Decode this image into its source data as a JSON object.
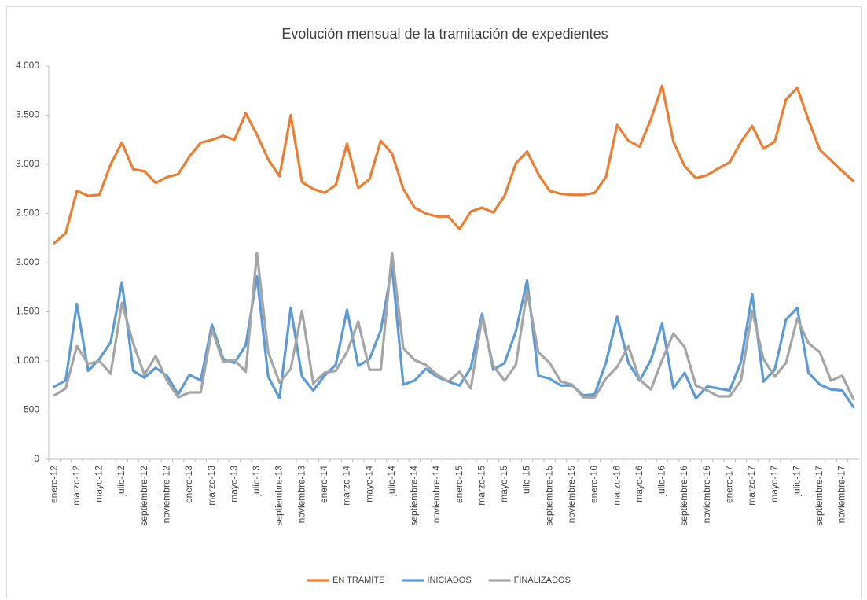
{
  "chart_data": {
    "type": "line",
    "title": "Evolución mensual de la tramitación de expedientes",
    "categories": [
      "enero-12",
      null,
      "marzo-12",
      null,
      "mayo-12",
      null,
      "julio-12",
      null,
      "septiembre-12",
      null,
      "noviembre-12",
      null,
      "enero-13",
      null,
      "marzo-13",
      null,
      "mayo-13",
      null,
      "julio-13",
      null,
      "septiembre-13",
      null,
      "noviembre-13",
      null,
      "enero-14",
      null,
      "marzo-14",
      null,
      "mayo-14",
      null,
      "julio-14",
      null,
      "septiembre-14",
      null,
      "noviembre-14",
      null,
      "enero-15",
      null,
      "marzo-15",
      null,
      "mayo-15",
      null,
      "julio-15",
      null,
      "septiembre-15",
      null,
      "noviembre-15",
      null,
      "enero-16",
      null,
      "marzo-16",
      null,
      "mayo-16",
      null,
      "julio-16",
      null,
      "septiembre-16",
      null,
      "noviembre-16",
      null,
      "enero-17",
      null,
      "marzo-17",
      null,
      "mayo-17",
      null,
      "julio-17",
      null,
      "septiembre-17",
      null,
      "noviembre-17",
      null
    ],
    "series": [
      {
        "name": "EN TRAMITE",
        "color": "#ed7d31",
        "values": [
          2200,
          2300,
          2730,
          2680,
          2690,
          3000,
          3220,
          2950,
          2930,
          2810,
          2870,
          2900,
          3080,
          3220,
          3250,
          3290,
          3250,
          3520,
          3300,
          3050,
          2880,
          3500,
          2820,
          2750,
          2710,
          2790,
          3210,
          2760,
          2850,
          3240,
          3110,
          2750,
          2560,
          2500,
          2470,
          2470,
          2340,
          2520,
          2560,
          2510,
          2680,
          3010,
          3130,
          2900,
          2730,
          2700,
          2690,
          2690,
          2710,
          2870,
          3400,
          3240,
          3180,
          3460,
          3800,
          3230,
          2980,
          2860,
          2890,
          2960,
          3020,
          3230,
          3390,
          3160,
          3230,
          3660,
          3780,
          3450,
          3150,
          3040,
          2930,
          2830
        ]
      },
      {
        "name": "INICIADOS",
        "color": "#5b9bd5",
        "values": [
          740,
          800,
          1580,
          900,
          1020,
          1190,
          1800,
          900,
          830,
          930,
          850,
          660,
          860,
          800,
          1370,
          1020,
          980,
          1160,
          1860,
          840,
          620,
          1540,
          840,
          700,
          850,
          960,
          1520,
          950,
          1020,
          1310,
          1960,
          760,
          800,
          920,
          840,
          790,
          750,
          930,
          1480,
          910,
          980,
          1300,
          1820,
          850,
          820,
          750,
          750,
          650,
          660,
          980,
          1450,
          980,
          800,
          1010,
          1380,
          720,
          880,
          620,
          740,
          720,
          700,
          990,
          1680,
          790,
          910,
          1420,
          1540,
          880,
          760,
          710,
          700,
          530
        ]
      },
      {
        "name": "FINALIZADOS",
        "color": "#a5a5a5",
        "values": [
          650,
          720,
          1150,
          970,
          1000,
          870,
          1590,
          1180,
          860,
          1050,
          800,
          630,
          680,
          680,
          1320,
          990,
          1010,
          890,
          2100,
          1090,
          780,
          920,
          1510,
          770,
          880,
          900,
          1090,
          1400,
          910,
          910,
          2100,
          1130,
          1010,
          960,
          860,
          790,
          890,
          720,
          1440,
          950,
          800,
          960,
          1710,
          1090,
          980,
          790,
          760,
          630,
          630,
          820,
          940,
          1150,
          810,
          710,
          1010,
          1280,
          1140,
          750,
          700,
          640,
          640,
          800,
          1510,
          1020,
          840,
          980,
          1430,
          1180,
          1090,
          800,
          850,
          610
        ]
      }
    ],
    "ylim": [
      0,
      4000
    ],
    "yticks": [
      0,
      500,
      {
        "value": 1000,
        "label": "1.000"
      },
      {
        "value": 1500,
        "label": "1.500"
      },
      {
        "value": 2000,
        "label": "2.000"
      },
      {
        "value": 2500,
        "label": "2.500"
      },
      {
        "value": 3000,
        "label": "3.000"
      },
      {
        "value": 3500,
        "label": "3.500"
      },
      {
        "value": 4000,
        "label": "4.000"
      }
    ],
    "grid": false,
    "legend": "bottom"
  }
}
